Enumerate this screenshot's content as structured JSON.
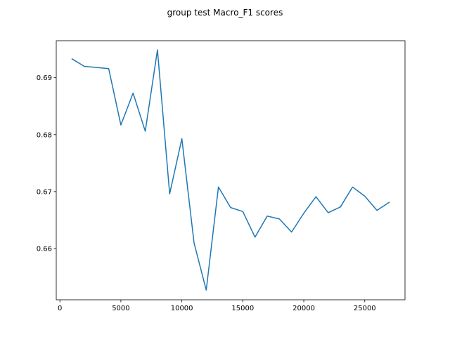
{
  "chart_data": {
    "type": "line",
    "title": "group test Macro_F1 scores",
    "xlabel": "",
    "ylabel": "",
    "xlim": [
      -300,
      28300
    ],
    "ylim": [
      0.651,
      0.6965
    ],
    "xticks": [
      0,
      5000,
      10000,
      15000,
      20000,
      25000
    ],
    "xtick_labels": [
      "0",
      "5000",
      "10000",
      "15000",
      "20000",
      "25000"
    ],
    "yticks": [
      0.66,
      0.67,
      0.68,
      0.69
    ],
    "ytick_labels": [
      "0.66",
      "0.67",
      "0.68",
      "0.69"
    ],
    "grid": false,
    "series": [
      {
        "color": "#1f77b4",
        "x": [
          1000,
          2000,
          3000,
          4000,
          5000,
          6000,
          7000,
          8000,
          9000,
          10000,
          11000,
          12000,
          13000,
          14000,
          15000,
          16000,
          17000,
          18000,
          19000,
          20000,
          21000,
          22000,
          23000,
          24000,
          25000,
          26000,
          27000
        ],
        "y": [
          0.6933,
          0.692,
          0.6918,
          0.6916,
          0.6817,
          0.6873,
          0.6806,
          0.6949,
          0.6696,
          0.6793,
          0.661,
          0.6527,
          0.6708,
          0.6672,
          0.6665,
          0.662,
          0.6657,
          0.6652,
          0.6629,
          0.6662,
          0.6691,
          0.6663,
          0.6673,
          0.6708,
          0.6692,
          0.6667,
          0.6681
        ]
      }
    ]
  }
}
